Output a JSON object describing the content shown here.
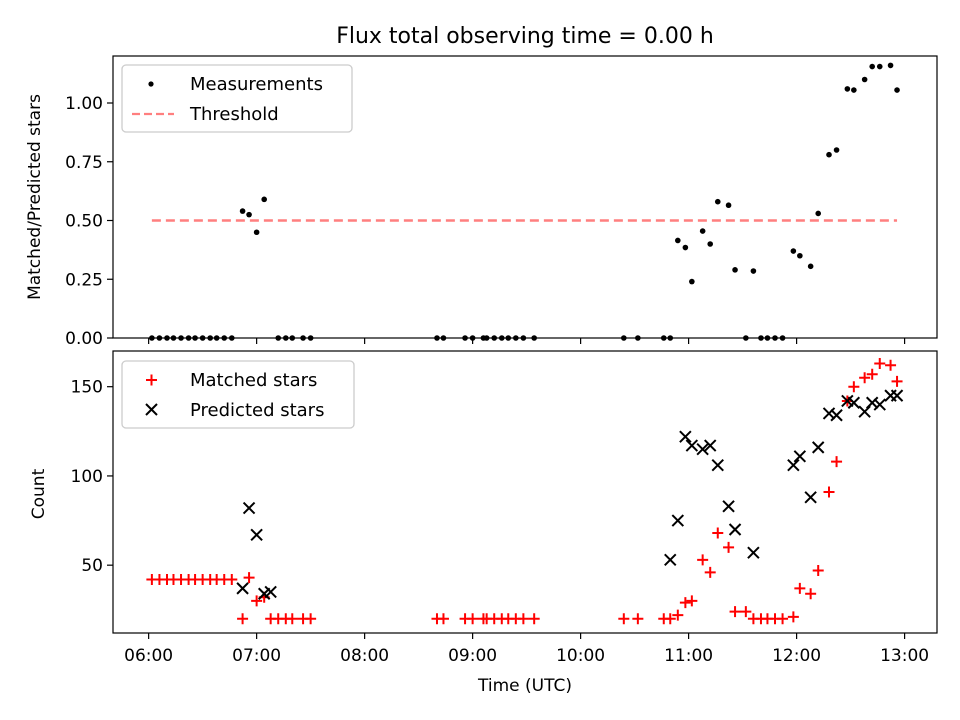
{
  "chart_data": [
    {
      "type": "scatter",
      "title": "Flux total observing time = 0.00 h",
      "xlabel": "",
      "ylabel": "Matched/Predicted stars",
      "xlim": [
        5.67,
        13.3
      ],
      "ylim": [
        0,
        1.2
      ],
      "xticks": [
        6,
        7,
        8,
        9,
        10,
        11,
        12,
        13
      ],
      "yticks": [
        0.0,
        0.25,
        0.5,
        0.75,
        1.0
      ],
      "ytick_labels": [
        "0.00",
        "0.25",
        "0.50",
        "0.75",
        "1.00"
      ],
      "legend_position": "upper-left",
      "series": [
        {
          "name": "Measurements",
          "marker": "dot",
          "color": "#000000",
          "x": [
            6.03,
            6.1,
            6.17,
            6.23,
            6.3,
            6.37,
            6.43,
            6.5,
            6.57,
            6.63,
            6.7,
            6.77,
            6.87,
            6.93,
            7.0,
            7.07,
            7.2,
            7.27,
            7.33,
            7.43,
            7.5,
            8.67,
            8.73,
            8.93,
            9.0,
            9.1,
            9.13,
            9.2,
            9.27,
            9.33,
            9.4,
            9.47,
            9.57,
            10.4,
            10.53,
            10.77,
            10.83,
            10.9,
            10.97,
            11.03,
            11.13,
            11.2,
            11.27,
            11.37,
            11.43,
            11.53,
            11.6,
            11.67,
            11.73,
            11.8,
            11.87,
            11.97,
            12.03,
            12.13,
            12.2,
            12.3,
            12.37,
            12.47,
            12.53,
            12.63,
            12.7,
            12.77,
            12.87,
            12.93
          ],
          "y": [
            0,
            0,
            0,
            0,
            0,
            0,
            0,
            0,
            0,
            0,
            0,
            0,
            0.54,
            0.525,
            0.45,
            0.59,
            0,
            0,
            0,
            0,
            0,
            0,
            0,
            0,
            0,
            0,
            0,
            0,
            0,
            0,
            0,
            0,
            0,
            0,
            0,
            0,
            0,
            0.415,
            0.385,
            0.24,
            0.455,
            0.4,
            0.58,
            0.565,
            0.29,
            0,
            0.285,
            0,
            0,
            0,
            0,
            0.37,
            0.35,
            0.305,
            0.53,
            0.78,
            0.8,
            1.06,
            1.055,
            1.1,
            1.155,
            1.155,
            1.16,
            1.055
          ]
        },
        {
          "name": "Threshold",
          "style": "dashed",
          "color": "#ff7f7f",
          "x": [
            6.03,
            12.93
          ],
          "y": [
            0.5,
            0.5
          ]
        }
      ]
    },
    {
      "type": "scatter",
      "title": "",
      "xlabel": "Time (UTC)",
      "ylabel": "Count",
      "xlim": [
        5.67,
        13.3
      ],
      "ylim": [
        12,
        170
      ],
      "xticks": [
        6,
        7,
        8,
        9,
        10,
        11,
        12,
        13
      ],
      "xtick_labels": [
        "06:00",
        "07:00",
        "08:00",
        "09:00",
        "10:00",
        "11:00",
        "12:00",
        "13:00"
      ],
      "yticks": [
        50,
        100,
        150
      ],
      "ytick_labels": [
        "50",
        "100",
        "150"
      ],
      "legend_position": "upper-left",
      "series": [
        {
          "name": "Matched stars",
          "marker": "plus",
          "color": "#ff0000",
          "x": [
            6.03,
            6.1,
            6.17,
            6.23,
            6.3,
            6.37,
            6.43,
            6.5,
            6.57,
            6.63,
            6.7,
            6.77,
            6.87,
            6.93,
            7.0,
            7.07,
            7.13,
            7.2,
            7.27,
            7.33,
            7.43,
            7.5,
            8.67,
            8.73,
            8.93,
            9.0,
            9.1,
            9.13,
            9.2,
            9.27,
            9.33,
            9.4,
            9.47,
            9.57,
            10.4,
            10.53,
            10.77,
            10.83,
            10.9,
            10.97,
            11.03,
            11.13,
            11.2,
            11.27,
            11.37,
            11.43,
            11.53,
            11.6,
            11.67,
            11.73,
            11.8,
            11.87,
            11.97,
            12.03,
            12.13,
            12.2,
            12.3,
            12.37,
            12.47,
            12.53,
            12.63,
            12.7,
            12.77,
            12.87,
            12.93
          ],
          "y": [
            42,
            42,
            42,
            42,
            42,
            42,
            42,
            42,
            42,
            42,
            42,
            42,
            20,
            43,
            30,
            32,
            20,
            20,
            20,
            20,
            20,
            20,
            20,
            20,
            20,
            20,
            20,
            20,
            20,
            20,
            20,
            20,
            20,
            20,
            20,
            20,
            20,
            20,
            22,
            29,
            30,
            53,
            46,
            68,
            60,
            24,
            24,
            20,
            20,
            20,
            20,
            20,
            21,
            37,
            34,
            47,
            91,
            108,
            142,
            150,
            155,
            157,
            163,
            162,
            153
          ]
        },
        {
          "name": "Predicted stars",
          "marker": "x",
          "color": "#000000",
          "x": [
            6.87,
            6.93,
            7.0,
            7.07,
            7.13,
            10.83,
            10.9,
            10.97,
            11.03,
            11.13,
            11.2,
            11.27,
            11.37,
            11.43,
            11.6,
            11.97,
            12.03,
            12.13,
            12.2,
            12.3,
            12.37,
            12.47,
            12.53,
            12.63,
            12.7,
            12.77,
            12.87,
            12.93
          ],
          "y": [
            37,
            82,
            67,
            34,
            35,
            53,
            75,
            122,
            117,
            115,
            117,
            106,
            83,
            70,
            57,
            106,
            111,
            88,
            116,
            135,
            134,
            142,
            141,
            136,
            141,
            140,
            145,
            145
          ]
        }
      ]
    }
  ]
}
